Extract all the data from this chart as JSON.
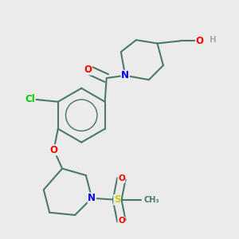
{
  "bg_color": "#ebebeb",
  "bond_color": "#4a7a6a",
  "bond_width": 1.5,
  "atom_colors": {
    "N": "#0000ff",
    "O": "#ff0000",
    "Cl": "#00cc00",
    "S": "#cccc00",
    "C": "#4a7a6a",
    "H": "#aaaaaa"
  },
  "font_size": 8.5
}
